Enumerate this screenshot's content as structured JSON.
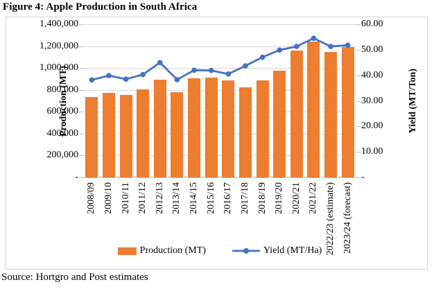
{
  "title": "Figure 4: Apple Production in South Africa",
  "source": "Source: Hortgro and Post estimates",
  "colors": {
    "bar": "#ED7D31",
    "line": "#4472C4",
    "gridline": "#D9D9D9",
    "axis_line": "#BFBFBF"
  },
  "chart_data": {
    "type": "combo-bar-line",
    "grid": true,
    "legend_position": "bottom",
    "categories": [
      "2008/09",
      "2009/10",
      "2010/11",
      "2011/12",
      "2012/13",
      "2013/14",
      "2014/15",
      "2015/16",
      "2016/17",
      "2017/18",
      "2018/19",
      "2019/20",
      "2020/21",
      "2021/22",
      "2022/23 (estimate)",
      "2023/24 (forecast)"
    ],
    "series": [
      {
        "name": "Production (MT)",
        "type": "bar",
        "axis": "left",
        "color": "#ED7D31",
        "values": [
          735000,
          775000,
          755000,
          805000,
          895000,
          780000,
          905000,
          915000,
          890000,
          825000,
          885000,
          975000,
          1160000,
          1240000,
          1145000,
          1190000
        ]
      },
      {
        "name": "Yield (MT/Ha)",
        "type": "line",
        "axis": "right",
        "color": "#4472C4",
        "values": [
          38.2,
          39.9,
          38.5,
          40.3,
          45.0,
          38.3,
          42.0,
          41.9,
          40.5,
          43.7,
          47.1,
          49.9,
          51.3,
          54.5,
          51.3,
          51.8
        ]
      }
    ],
    "left_axis": {
      "label": "Production (MT)",
      "min": 0,
      "max": 1400000,
      "interval": 200000,
      "ticks": [
        "1,400,000",
        "1,200,000",
        "1,000,000",
        "800,000",
        "600,000",
        "400,000",
        "200,000",
        "-"
      ]
    },
    "right_axis": {
      "label": "Yield (MT/Ton)",
      "min": 0,
      "max": 60,
      "interval": 10,
      "ticks": [
        "60.00",
        "50.00",
        "40.00",
        "30.00",
        "20.00",
        "10.00",
        "-"
      ]
    },
    "legend": [
      "Production (MT)",
      "Yield (MT/Ha)"
    ]
  }
}
